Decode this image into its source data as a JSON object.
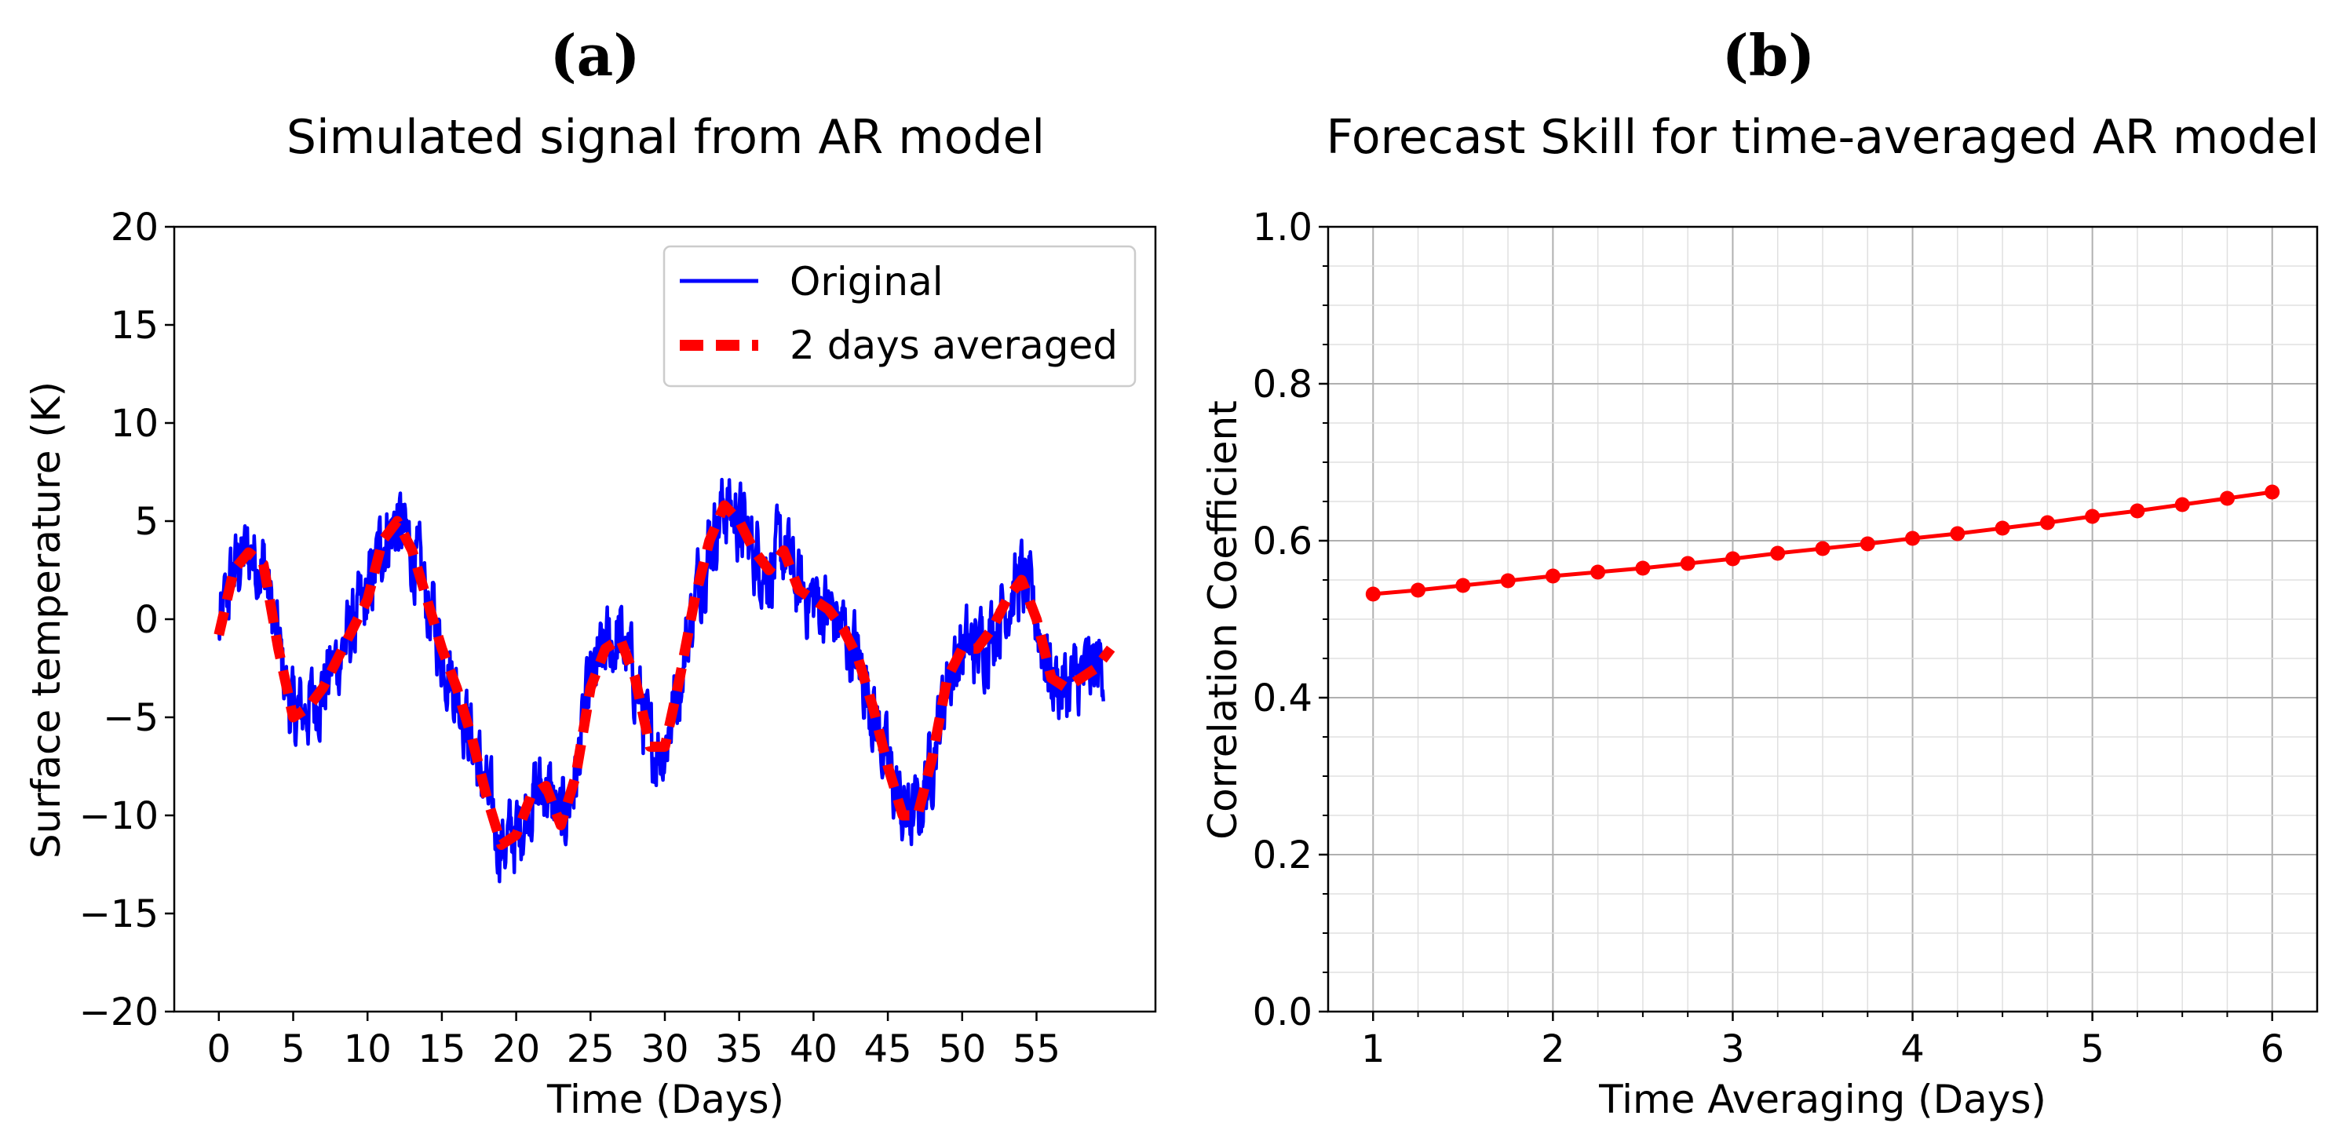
{
  "chart_data": [
    {
      "panel": "(a)",
      "type": "line",
      "title": "Simulated signal from AR model",
      "xlabel": "Time (Days)",
      "ylabel": "Surface temperature (K)",
      "xlim": [
        -3,
        63
      ],
      "ylim": [
        -20,
        20
      ],
      "xticks": [
        0,
        5,
        10,
        15,
        20,
        25,
        30,
        35,
        40,
        45,
        50,
        55
      ],
      "yticks": [
        -20,
        -15,
        -10,
        -5,
        0,
        5,
        10,
        15,
        20
      ],
      "xtick_labels": [
        "0",
        "5",
        "10",
        "15",
        "20",
        "25",
        "30",
        "35",
        "40",
        "45",
        "50",
        "55"
      ],
      "ytick_labels": [
        "−20",
        "−15",
        "−10",
        "−5",
        "0",
        "5",
        "10",
        "15",
        "20"
      ],
      "grid": false,
      "legend_position": "top-right",
      "series": [
        {
          "name": "Original",
          "color": "#0000ff",
          "style": "solid",
          "noisy": true,
          "x": [
            0,
            1,
            2,
            3,
            4,
            5,
            6,
            7,
            8,
            9,
            10,
            11,
            12,
            13,
            14,
            15,
            16,
            17,
            18,
            19,
            20,
            21,
            22,
            23,
            24,
            25,
            26,
            27,
            28,
            29,
            30,
            31,
            32,
            33,
            34,
            35,
            36,
            37,
            38,
            39,
            40,
            41,
            42,
            43,
            44,
            45,
            46,
            47,
            48,
            49,
            50,
            51,
            52,
            53,
            54,
            55,
            56,
            57,
            58,
            59,
            60
          ],
          "y": [
            -0.8,
            2.5,
            3.4,
            2.8,
            -1.5,
            -5,
            -4.5,
            -3.5,
            -2,
            -0.5,
            1,
            4,
            5,
            3.5,
            1,
            -1.5,
            -3.5,
            -6,
            -9,
            -11.5,
            -11,
            -9,
            -8.5,
            -10.5,
            -8,
            -3.5,
            -1.5,
            -1,
            -3,
            -6.5,
            -6.5,
            -3,
            1,
            4,
            5.8,
            5,
            3.5,
            2.5,
            3.5,
            1.5,
            1,
            0.5,
            -0.5,
            -2,
            -4.5,
            -7.5,
            -10,
            -10,
            -7,
            -3,
            -1.5,
            -1.5,
            -0.5,
            1,
            2,
            0,
            -3,
            -3.5,
            -3,
            -2.5,
            -1.5
          ]
        },
        {
          "name": "2 days averaged",
          "color": "#ff0000",
          "style": "dashed",
          "x": [
            0,
            1,
            2,
            3,
            4,
            5,
            6,
            7,
            8,
            9,
            10,
            11,
            12,
            13,
            14,
            15,
            16,
            17,
            18,
            19,
            20,
            21,
            22,
            23,
            24,
            25,
            26,
            27,
            28,
            29,
            30,
            31,
            32,
            33,
            34,
            35,
            36,
            37,
            38,
            39,
            40,
            41,
            42,
            43,
            44,
            45,
            46,
            47,
            48,
            49,
            50,
            51,
            52,
            53,
            54,
            55,
            56,
            57,
            58,
            59,
            60
          ],
          "y": [
            -0.8,
            2.5,
            3.4,
            2.8,
            -1.5,
            -5,
            -4.5,
            -3.5,
            -2,
            -0.5,
            1,
            4,
            5,
            3.5,
            1,
            -1.5,
            -3.5,
            -6,
            -9,
            -11.5,
            -11,
            -9,
            -8.5,
            -10.5,
            -8,
            -3.5,
            -1.5,
            -1,
            -3,
            -6.5,
            -6.5,
            -3,
            1,
            4,
            5.8,
            5,
            3.5,
            2.5,
            3.5,
            1.5,
            1,
            0.5,
            -0.5,
            -2,
            -4.5,
            -7.5,
            -10,
            -10,
            -7,
            -3,
            -1.5,
            -1.5,
            -0.5,
            1,
            2,
            0,
            -3,
            -3.5,
            -3,
            -2.5,
            -1.5
          ]
        }
      ]
    },
    {
      "panel": "(b)",
      "type": "line",
      "title": "Forecast Skill for time-averaged AR model",
      "xlabel": "Time Averaging (Days)",
      "ylabel": "Correlation Coefficient",
      "xlim": [
        0.75,
        6.25
      ],
      "ylim": [
        0.0,
        1.0
      ],
      "xticks": [
        1,
        2,
        3,
        4,
        5,
        6
      ],
      "yticks": [
        0.0,
        0.2,
        0.4,
        0.6,
        0.8,
        1.0
      ],
      "xtick_labels": [
        "1",
        "2",
        "3",
        "4",
        "5",
        "6"
      ],
      "ytick_labels": [
        "0.0",
        "0.2",
        "0.4",
        "0.6",
        "0.8",
        "1.0"
      ],
      "grid": true,
      "series": [
        {
          "name": "Correlation Coefficient",
          "color": "#ff0000",
          "style": "solid-markers",
          "x": [
            1,
            1.25,
            1.5,
            1.75,
            2,
            2.25,
            2.5,
            2.75,
            3,
            3.25,
            3.5,
            3.75,
            4,
            4.25,
            4.5,
            4.75,
            5,
            5.25,
            5.5,
            5.75,
            6
          ],
          "y": [
            0.532,
            0.537,
            0.543,
            0.549,
            0.555,
            0.56,
            0.565,
            0.571,
            0.577,
            0.584,
            0.59,
            0.596,
            0.603,
            0.609,
            0.616,
            0.623,
            0.631,
            0.638,
            0.646,
            0.654,
            0.662
          ]
        }
      ]
    }
  ]
}
